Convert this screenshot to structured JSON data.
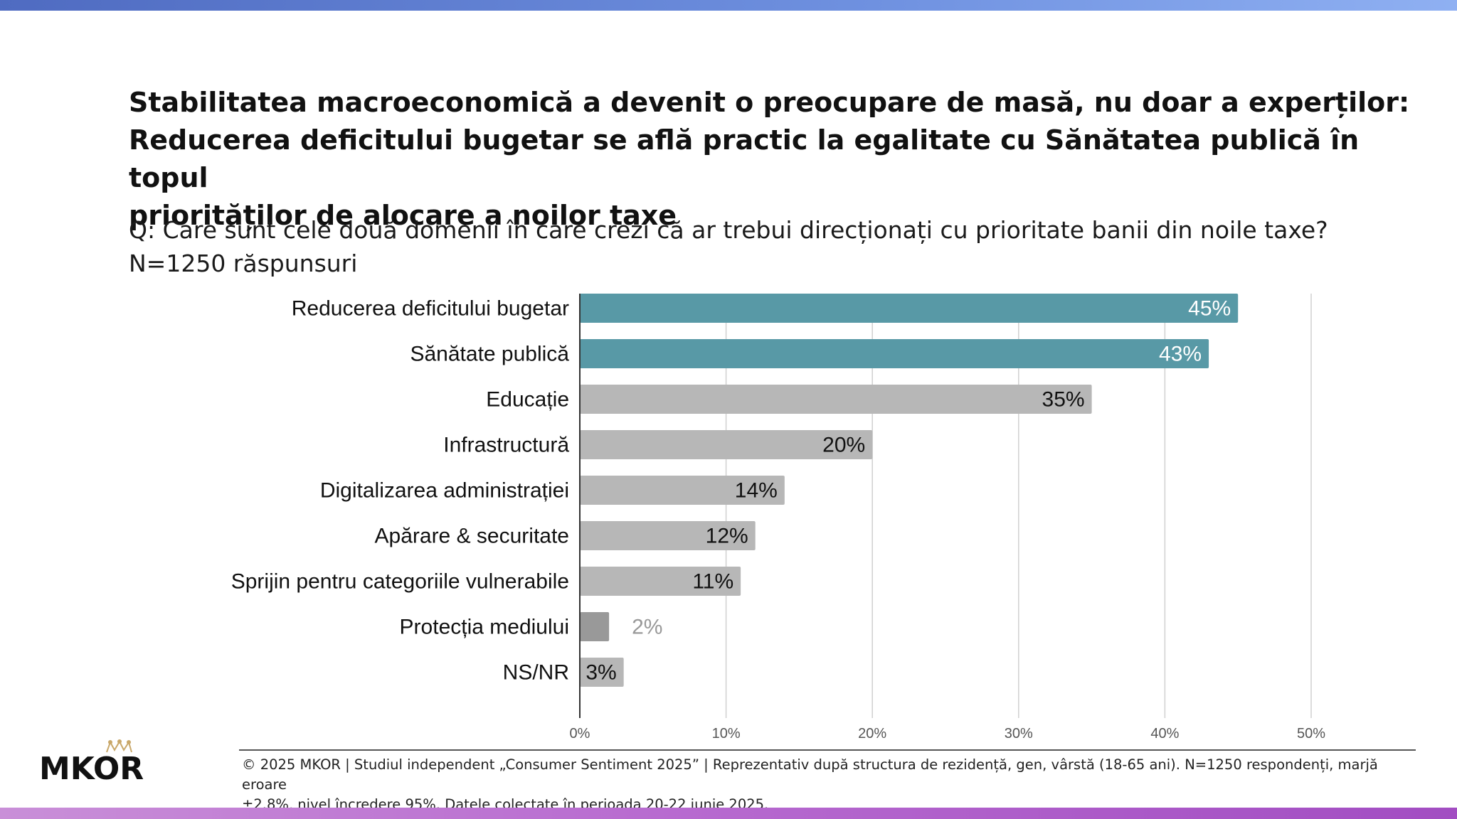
{
  "header": {
    "title_lines": [
      "Stabilitatea macroeconomică a devenit o preocupare de masă, nu doar a experților:",
      "Reducerea deficitului bugetar se află practic la egalitate cu Sănătatea publică în topul",
      "priorităților de alocare a noilor taxe"
    ],
    "question": "Q: Care sunt cele două domenii în care crezi că ar trebui direcționați cu prioritate banii din noile taxe?",
    "sample": "N=1250 răspunsuri"
  },
  "chart_data": {
    "type": "bar",
    "orientation": "horizontal",
    "categories": [
      "Reducerea deficitului bugetar",
      "Sănătate publică",
      "Educație",
      "Infrastructură",
      "Digitalizarea administrației",
      "Apărare & securitate",
      "Sprijin pentru categoriile vulnerabile",
      "Protecția mediului",
      "NS/NR"
    ],
    "values": [
      45,
      43,
      35,
      20,
      14,
      12,
      11,
      2,
      3
    ],
    "value_labels": [
      "45%",
      "43%",
      "35%",
      "20%",
      "14%",
      "12%",
      "11%",
      "2%",
      "3%"
    ],
    "bar_colors": [
      "#5899a6",
      "#5899a6",
      "#b7b7b7",
      "#b7b7b7",
      "#b7b7b7",
      "#b7b7b7",
      "#b7b7b7",
      "#999999",
      "#b7b7b7"
    ],
    "label_colors": [
      "#ffffff",
      "#ffffff",
      "#111111",
      "#111111",
      "#111111",
      "#111111",
      "#111111",
      "#999999",
      "#111111"
    ],
    "label_inside": [
      true,
      true,
      true,
      true,
      true,
      true,
      true,
      false,
      true
    ],
    "xlim": [
      0,
      50
    ],
    "xticks": [
      0,
      10,
      20,
      30,
      40,
      50
    ],
    "xtick_labels": [
      "0%",
      "10%",
      "20%",
      "30%",
      "40%",
      "50%"
    ],
    "grid": true,
    "xlabel": "",
    "ylabel": ""
  },
  "footer": {
    "lines": [
      "© 2025 MKOR | Studiul independent „Consumer Sentiment 2025” | Reprezentativ după structura de rezidență, gen, vârstă (18-65 ani). N=1250 respondenți, marjă eroare",
      "±2.8%, nivel încredere 95%. Datele colectate în perioada 20-22 iunie 2025."
    ]
  },
  "logo": {
    "text": "MKOR",
    "icon": "crown-icon"
  }
}
